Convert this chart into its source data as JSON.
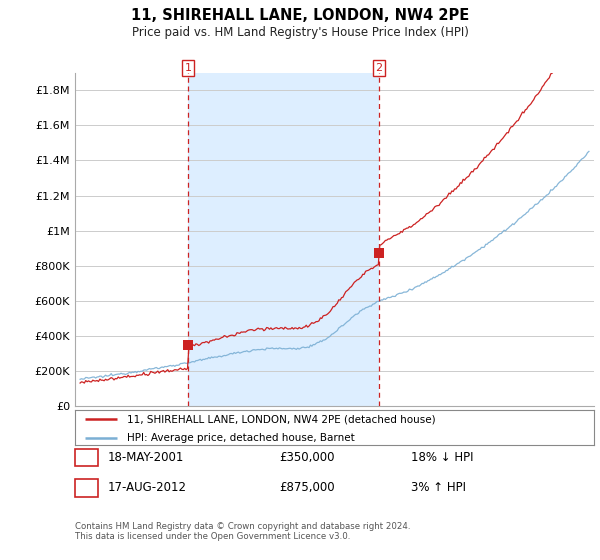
{
  "title": "11, SHIREHALL LANE, LONDON, NW4 2PE",
  "subtitle": "Price paid vs. HM Land Registry's House Price Index (HPI)",
  "ytick_values": [
    0,
    200000,
    400000,
    600000,
    800000,
    1000000,
    1200000,
    1400000,
    1600000,
    1800000
  ],
  "ylim": [
    0,
    1900000
  ],
  "xlim_start": 1994.7,
  "xlim_end": 2025.3,
  "hpi_color": "#7bafd4",
  "price_color": "#cc2222",
  "shade_color": "#ddeeff",
  "sale1_year": 2001.37,
  "sale1_price": 350000,
  "sale2_year": 2012.62,
  "sale2_price": 875000,
  "annotation1_label": "1",
  "annotation2_label": "2",
  "legend_line1": "11, SHIREHALL LANE, LONDON, NW4 2PE (detached house)",
  "legend_line2": "HPI: Average price, detached house, Barnet",
  "table_row1": [
    "1",
    "18-MAY-2001",
    "£350,000",
    "18% ↓ HPI"
  ],
  "table_row2": [
    "2",
    "17-AUG-2012",
    "£875,000",
    "3% ↑ HPI"
  ],
  "footer": "Contains HM Land Registry data © Crown copyright and database right 2024.\nThis data is licensed under the Open Government Licence v3.0.",
  "background_color": "#ffffff",
  "grid_color": "#cccccc"
}
